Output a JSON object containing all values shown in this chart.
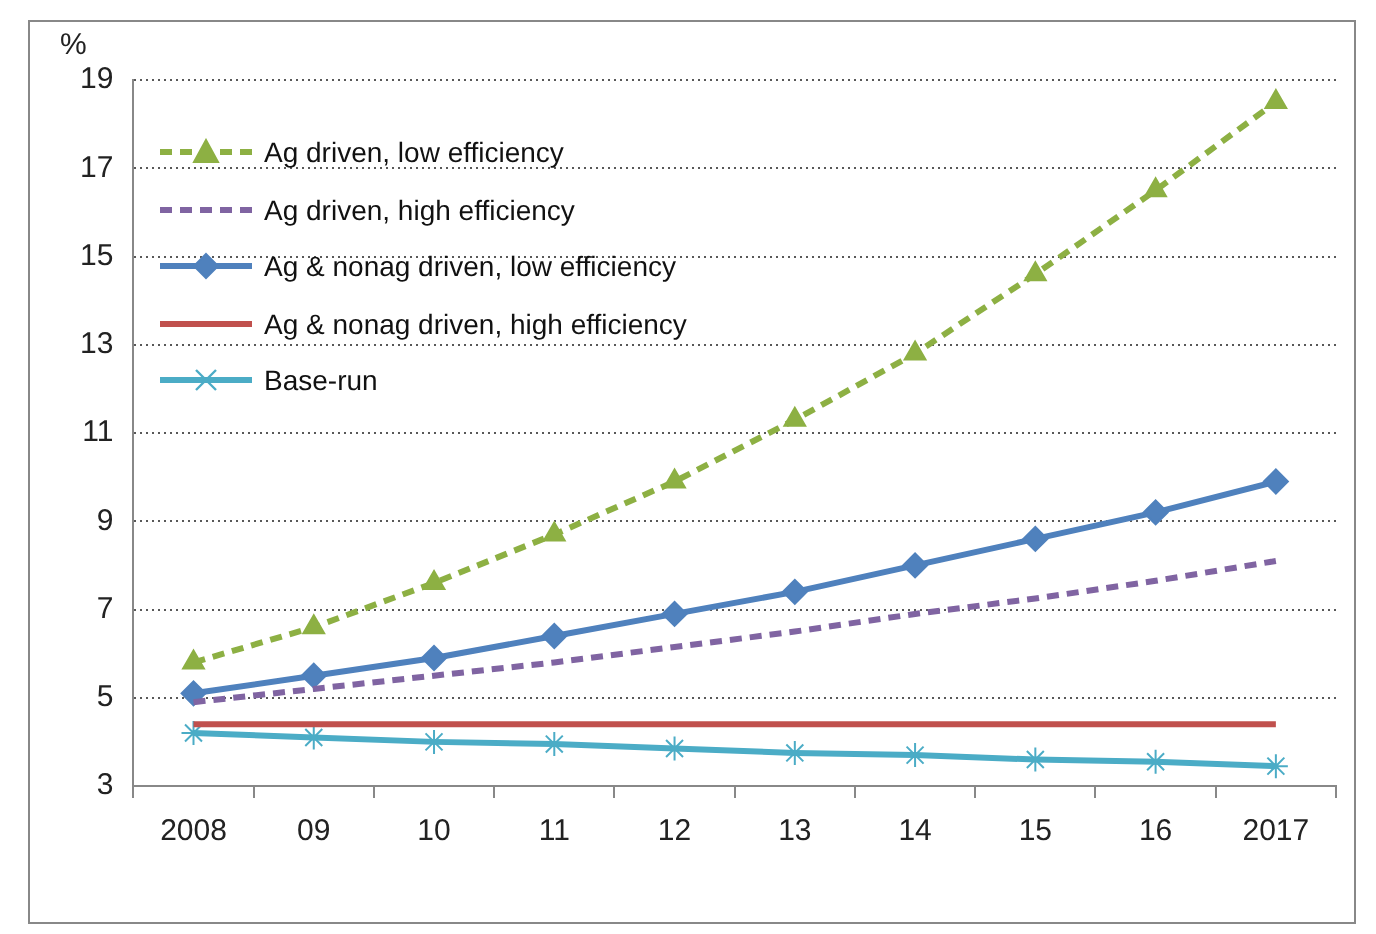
{
  "chart_data": {
    "type": "line",
    "ylabel": "%",
    "categories": [
      "2008",
      "09",
      "10",
      "11",
      "12",
      "13",
      "14",
      "15",
      "16",
      "2017"
    ],
    "ylim": [
      3,
      19
    ],
    "yticks": [
      3,
      5,
      7,
      9,
      11,
      13,
      15,
      17,
      19
    ],
    "grid": "y",
    "legend": "top left",
    "series": [
      {
        "name": "Ag driven, low efficiency",
        "color": "#8db043",
        "marker": "triangle",
        "line_style": "dashed",
        "values": [
          5.8,
          6.6,
          7.6,
          8.7,
          9.9,
          11.3,
          12.8,
          14.6,
          16.5,
          18.5
        ]
      },
      {
        "name": "Ag driven, high efficiency",
        "color": "#8064a2",
        "marker": "none",
        "line_style": "dashed",
        "values": [
          4.9,
          5.2,
          5.5,
          5.8,
          6.15,
          6.5,
          6.9,
          7.25,
          7.65,
          8.1
        ]
      },
      {
        "name": "Ag & nonag driven, low efficiency",
        "color": "#4f81bd",
        "marker": "diamond",
        "line_style": "solid",
        "values": [
          5.1,
          5.5,
          5.9,
          6.4,
          6.9,
          7.4,
          8.0,
          8.6,
          9.2,
          9.9
        ]
      },
      {
        "name": "Ag & nonag driven, high efficiency",
        "color": "#c0504d",
        "marker": "none",
        "line_style": "solid",
        "values": [
          4.4,
          4.4,
          4.4,
          4.4,
          4.4,
          4.4,
          4.4,
          4.4,
          4.4,
          4.4
        ]
      },
      {
        "name": "Base-run",
        "color": "#4bacc6",
        "marker": "cross",
        "line_style": "solid",
        "values": [
          4.2,
          4.1,
          4.0,
          3.95,
          3.85,
          3.75,
          3.7,
          3.6,
          3.55,
          3.45
        ]
      }
    ]
  }
}
